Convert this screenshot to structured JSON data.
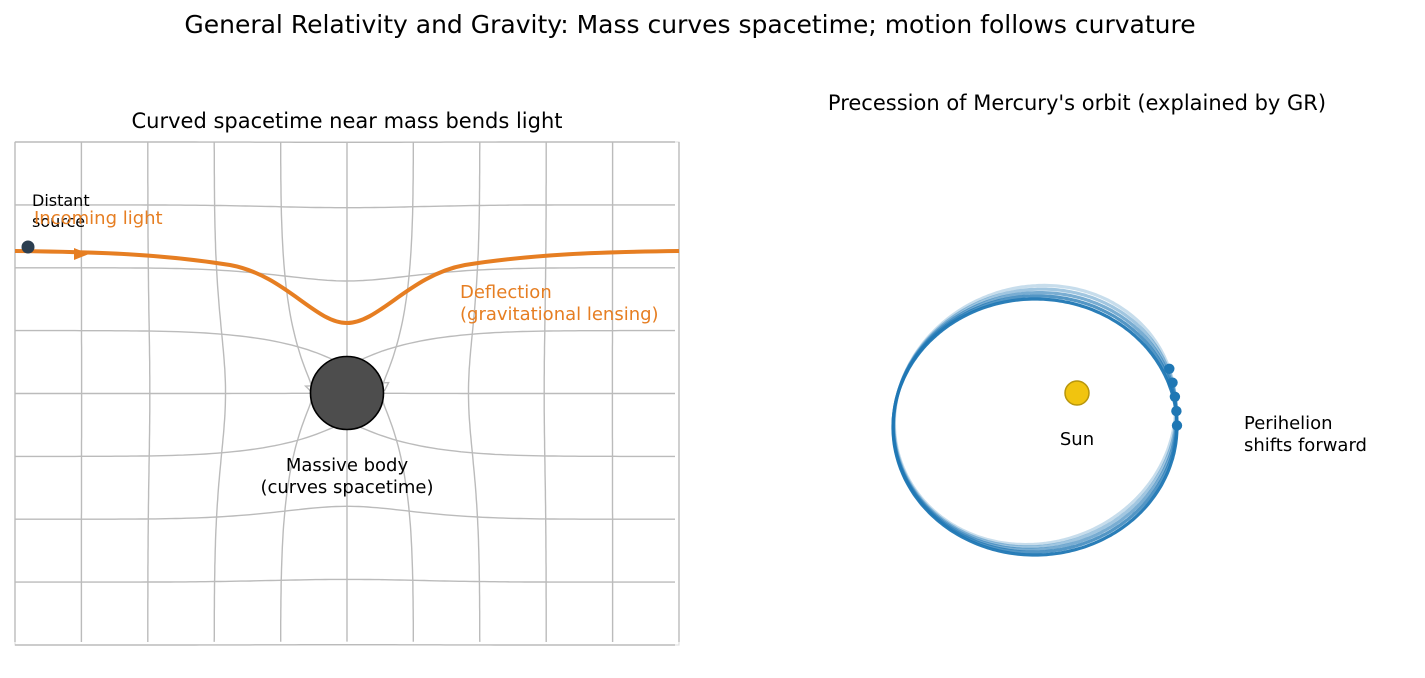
{
  "suptitle": "General Relativity and Gravity: Mass curves spacetime; motion follows curvature",
  "left_panel": {
    "title": "Curved spacetime near mass bends light",
    "source_label_line1": "Distant",
    "source_label_line2": "source",
    "incoming_label": "Incoming light",
    "deflection_label_line1": "Deflection",
    "deflection_label_line2": "(gravitational lensing)",
    "mass_label_line1": "Massive body",
    "mass_label_line2": "(curves spacetime)"
  },
  "right_panel": {
    "title": "Precession of Mercury's orbit (explained by GR)",
    "sun_label": "Sun",
    "perihelion_label_line1": "Perihelion",
    "perihelion_label_line2": "shifts forward",
    "orbit_count": 5
  },
  "colors": {
    "light_ray": "#e67e22",
    "grid": "#bbbbbb",
    "mass": "#4d4d4d",
    "source_dot": "#2c3e50",
    "orbit": "#1f77b4",
    "sun": "#f1c40f",
    "sun_edge": "#b8960c"
  }
}
